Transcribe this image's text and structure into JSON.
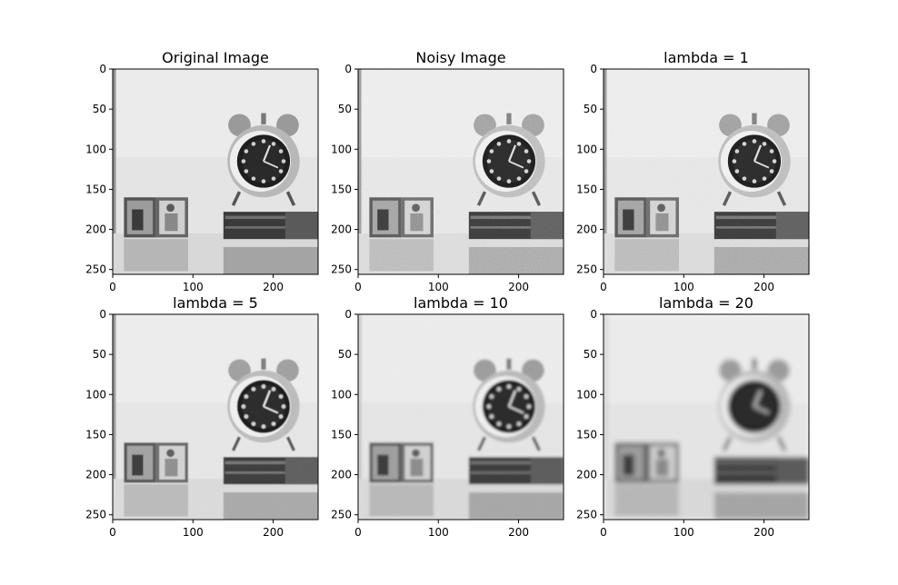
{
  "chart_data": [
    {
      "type": "heatmap",
      "title": "Original Image",
      "colormap": "gray",
      "noise": 0,
      "smoothing": 0,
      "x_ticks": [
        0,
        100,
        200
      ],
      "y_ticks": [
        0,
        50,
        100,
        150,
        200,
        250
      ],
      "xlim": [
        0,
        256
      ],
      "ylim": [
        256,
        0
      ]
    },
    {
      "type": "heatmap",
      "title": "Noisy Image",
      "colormap": "gray",
      "noise": 1.0,
      "smoothing": 0,
      "x_ticks": [
        0,
        100,
        200
      ],
      "y_ticks": [
        0,
        50,
        100,
        150,
        200,
        250
      ],
      "xlim": [
        0,
        256
      ],
      "ylim": [
        256,
        0
      ]
    },
    {
      "type": "heatmap",
      "title": "lambda = 1",
      "colormap": "gray",
      "lambda": 1,
      "noise": 0.85,
      "smoothing": 0.1,
      "x_ticks": [
        0,
        100,
        200
      ],
      "y_ticks": [
        0,
        50,
        100,
        150,
        200,
        250
      ],
      "xlim": [
        0,
        256
      ],
      "ylim": [
        256,
        0
      ]
    },
    {
      "type": "heatmap",
      "title": "lambda = 5",
      "colormap": "gray",
      "lambda": 5,
      "noise": 0.55,
      "smoothing": 0.3,
      "x_ticks": [
        0,
        100,
        200
      ],
      "y_ticks": [
        0,
        50,
        100,
        150,
        200,
        250
      ],
      "xlim": [
        0,
        256
      ],
      "ylim": [
        256,
        0
      ]
    },
    {
      "type": "heatmap",
      "title": "lambda = 10",
      "colormap": "gray",
      "lambda": 10,
      "noise": 0.3,
      "smoothing": 0.6,
      "x_ticks": [
        0,
        100,
        200
      ],
      "y_ticks": [
        0,
        50,
        100,
        150,
        200,
        250
      ],
      "xlim": [
        0,
        256
      ],
      "ylim": [
        256,
        0
      ]
    },
    {
      "type": "heatmap",
      "title": "lambda = 20",
      "colormap": "gray",
      "lambda": 20,
      "noise": 0.08,
      "smoothing": 1.0,
      "x_ticks": [
        0,
        100,
        200
      ],
      "y_ticks": [
        0,
        50,
        100,
        150,
        200,
        250
      ],
      "xlim": [
        0,
        256
      ],
      "ylim": [
        256,
        0
      ]
    }
  ]
}
